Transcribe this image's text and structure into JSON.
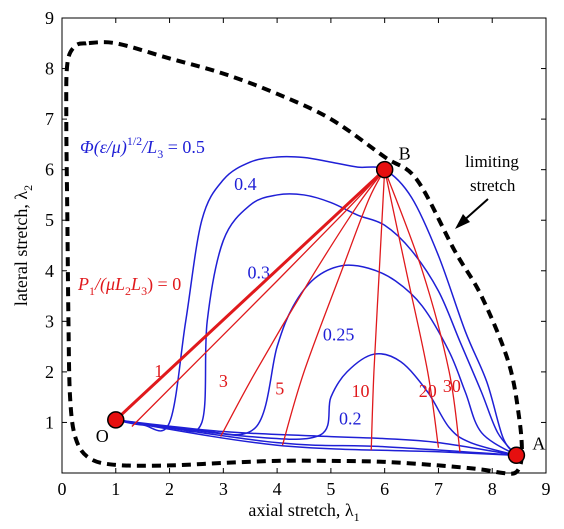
{
  "chart_data": {
    "type": "line",
    "xlabel": "axial stretch, λ",
    "xlabel_sub": "1",
    "ylabel": "lateral stretch, λ",
    "ylabel_sub": "2",
    "xlim": [
      0,
      9
    ],
    "ylim": [
      0,
      9
    ],
    "xticks": [
      "0",
      "1",
      "2",
      "3",
      "4",
      "5",
      "6",
      "7",
      "8",
      "9"
    ],
    "yticks": [
      "1",
      "2",
      "3",
      "4",
      "5",
      "6",
      "7",
      "8",
      "9"
    ],
    "grid": false,
    "points": [
      {
        "label": "O",
        "x": 1.0,
        "y": 1.05
      },
      {
        "label": "B",
        "x": 6.0,
        "y": 6.0
      },
      {
        "label": "A",
        "x": 8.45,
        "y": 0.35
      }
    ],
    "limiting_curve": {
      "label": "limiting stretch",
      "points": [
        [
          0.45,
          8.5
        ],
        [
          0.25,
          8.45
        ],
        [
          0.1,
          8.1
        ],
        [
          0.08,
          7.0
        ],
        [
          0.1,
          5.0
        ],
        [
          0.12,
          3.0
        ],
        [
          0.15,
          1.5
        ],
        [
          0.25,
          0.7
        ],
        [
          0.5,
          0.3
        ],
        [
          1.0,
          0.16
        ],
        [
          2.0,
          0.15
        ],
        [
          3.0,
          0.2
        ],
        [
          4.0,
          0.24
        ],
        [
          5.0,
          0.24
        ],
        [
          6.0,
          0.22
        ],
        [
          7.0,
          0.15
        ],
        [
          7.8,
          0.07
        ],
        [
          8.2,
          0.0
        ],
        [
          8.45,
          0.02
        ],
        [
          8.55,
          0.35
        ],
        [
          8.5,
          1.1
        ],
        [
          8.3,
          2.2
        ],
        [
          7.8,
          3.5
        ],
        [
          7.3,
          4.4
        ],
        [
          6.6,
          5.8
        ],
        [
          6.0,
          6.25
        ],
        [
          5.0,
          7.0
        ],
        [
          4.0,
          7.5
        ],
        [
          3.0,
          7.9
        ],
        [
          2.0,
          8.2
        ],
        [
          1.0,
          8.5
        ],
        [
          0.45,
          8.5
        ]
      ]
    },
    "phi_series": [
      {
        "label": "0.5",
        "points": [
          [
            1.0,
            1.05
          ],
          [
            1.5,
            0.95
          ],
          [
            2.0,
            1.0
          ],
          [
            2.3,
            3.0
          ],
          [
            2.6,
            5.0
          ],
          [
            3.0,
            5.8
          ],
          [
            3.5,
            6.15
          ],
          [
            4.0,
            6.25
          ],
          [
            4.5,
            6.24
          ],
          [
            5.0,
            6.15
          ],
          [
            5.5,
            6.05
          ],
          [
            6.0,
            6.0
          ],
          [
            6.5,
            5.45
          ],
          [
            7.0,
            4.3
          ],
          [
            7.5,
            2.8
          ],
          [
            7.9,
            1.8
          ],
          [
            8.2,
            0.7
          ],
          [
            8.45,
            0.35
          ]
        ]
      },
      {
        "label": "0.4",
        "points": [
          [
            1.0,
            1.05
          ],
          [
            2.0,
            0.92
          ],
          [
            2.6,
            1.0
          ],
          [
            2.7,
            3.0
          ],
          [
            3.0,
            4.6
          ],
          [
            3.5,
            5.3
          ],
          [
            4.0,
            5.5
          ],
          [
            4.5,
            5.5
          ],
          [
            5.0,
            5.35
          ],
          [
            5.5,
            5.1
          ],
          [
            6.0,
            4.9
          ],
          [
            6.5,
            4.4
          ],
          [
            7.0,
            3.6
          ],
          [
            7.4,
            2.6
          ],
          [
            7.8,
            1.6
          ],
          [
            8.1,
            0.8
          ],
          [
            8.45,
            0.35
          ]
        ]
      },
      {
        "label": "0.3",
        "points": [
          [
            1.0,
            1.05
          ],
          [
            2.5,
            0.85
          ],
          [
            3.6,
            0.9
          ],
          [
            4.0,
            2.5
          ],
          [
            4.3,
            3.3
          ],
          [
            4.7,
            3.85
          ],
          [
            5.2,
            4.1
          ],
          [
            5.7,
            4.05
          ],
          [
            6.2,
            3.8
          ],
          [
            6.7,
            3.3
          ],
          [
            7.2,
            2.4
          ],
          [
            7.5,
            1.6
          ],
          [
            7.8,
            0.8
          ],
          [
            8.45,
            0.35
          ]
        ]
      },
      {
        "label": "0.25",
        "points": [
          [
            1.0,
            1.05
          ],
          [
            3.5,
            0.72
          ],
          [
            4.8,
            0.75
          ],
          [
            5.0,
            1.5
          ],
          [
            5.3,
            2.0
          ],
          [
            5.8,
            2.35
          ],
          [
            6.3,
            2.2
          ],
          [
            6.8,
            1.6
          ],
          [
            7.2,
            0.9
          ],
          [
            7.6,
            0.6
          ],
          [
            8.45,
            0.35
          ]
        ]
      },
      {
        "label": "0.2",
        "points": [
          [
            1.0,
            1.05
          ],
          [
            3.0,
            0.82
          ],
          [
            5.0,
            0.72
          ],
          [
            6.0,
            0.68
          ],
          [
            7.0,
            0.6
          ],
          [
            8.45,
            0.35
          ]
        ]
      },
      {
        "label": "",
        "points": [
          [
            1.0,
            1.05
          ],
          [
            4.0,
            0.6
          ],
          [
            6.0,
            0.52
          ],
          [
            8.45,
            0.35
          ]
        ]
      },
      {
        "label": "",
        "points": [
          [
            1.0,
            1.05
          ],
          [
            4.0,
            0.55
          ],
          [
            7.0,
            0.42
          ],
          [
            8.45,
            0.35
          ]
        ]
      }
    ],
    "p_series": [
      {
        "label": "0",
        "points": [
          [
            1.0,
            1.05
          ],
          [
            6.0,
            6.0
          ]
        ]
      },
      {
        "label": "1",
        "points": [
          [
            1.3,
            0.92
          ],
          [
            2.5,
            2.2
          ],
          [
            4.0,
            3.8
          ],
          [
            5.2,
            5.1
          ],
          [
            6.0,
            6.0
          ]
        ]
      },
      {
        "label": "3",
        "points": [
          [
            2.95,
            0.72
          ],
          [
            3.6,
            2.0
          ],
          [
            4.6,
            3.8
          ],
          [
            5.5,
            5.3
          ],
          [
            6.0,
            6.0
          ]
        ]
      },
      {
        "label": "5",
        "points": [
          [
            4.1,
            0.55
          ],
          [
            4.5,
            2.0
          ],
          [
            5.2,
            4.0
          ],
          [
            5.7,
            5.4
          ],
          [
            6.0,
            6.0
          ]
        ]
      },
      {
        "label": "10",
        "points": [
          [
            5.75,
            0.45
          ],
          [
            5.8,
            2.0
          ],
          [
            5.9,
            4.0
          ],
          [
            6.0,
            6.0
          ]
        ]
      },
      {
        "label": "20",
        "points": [
          [
            7.0,
            0.5
          ],
          [
            6.8,
            2.0
          ],
          [
            6.4,
            4.0
          ],
          [
            6.0,
            6.0
          ]
        ]
      },
      {
        "label": "30",
        "points": [
          [
            7.4,
            0.42
          ],
          [
            7.2,
            2.0
          ],
          [
            6.7,
            4.0
          ],
          [
            6.0,
            6.0
          ]
        ]
      }
    ],
    "annotations": {
      "phi_eq": "Φ(ε/μ)",
      "phi_sup": "1/2",
      "phi_div": "/L",
      "phi_sub": "3",
      "phi_val": " = 0.5",
      "p_pre": "P",
      "p_sub1": "1",
      "p_mid": "/(μL",
      "p_sub2": "2",
      "p_l3": "L",
      "p_sub3": "3",
      "p_val": ") = 0",
      "limit_line1": "limiting",
      "limit_line2": "stretch"
    },
    "colors": {
      "axis": "#000000",
      "phi": "#1f1fd6",
      "p": "#e0191c",
      "marker": "#e60f0f"
    }
  }
}
